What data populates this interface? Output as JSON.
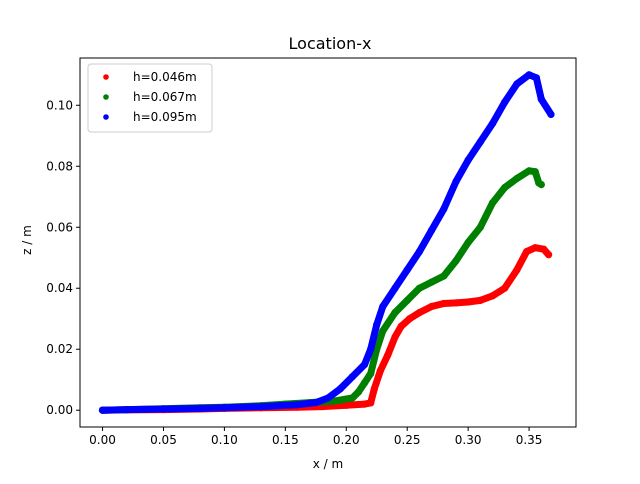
{
  "chart_data": {
    "type": "scatter",
    "title": "Location-x",
    "xlabel": "x / m",
    "ylabel": "z / m",
    "xlim": [
      -0.0185,
      0.3885
    ],
    "ylim": [
      -0.0055,
      0.1155
    ],
    "xticks": [
      0.0,
      0.05,
      0.1,
      0.15,
      0.2,
      0.25,
      0.3,
      0.35
    ],
    "xtick_labels": [
      "0.00",
      "0.05",
      "0.10",
      "0.15",
      "0.20",
      "0.25",
      "0.30",
      "0.35"
    ],
    "yticks": [
      0.0,
      0.02,
      0.04,
      0.06,
      0.08,
      0.1
    ],
    "ytick_labels": [
      "0.00",
      "0.02",
      "0.04",
      "0.06",
      "0.08",
      "0.10"
    ],
    "grid": false,
    "legend_position": "top-left",
    "series": [
      {
        "name": "h=0.046m",
        "color": "#ff0000",
        "points": [
          [
            0.0,
            0.0
          ],
          [
            0.02,
            0.0001
          ],
          [
            0.05,
            0.0002
          ],
          [
            0.08,
            0.0004
          ],
          [
            0.1,
            0.0006
          ],
          [
            0.13,
            0.0008
          ],
          [
            0.16,
            0.001
          ],
          [
            0.18,
            0.0012
          ],
          [
            0.2,
            0.0016
          ],
          [
            0.215,
            0.002
          ],
          [
            0.22,
            0.0024
          ],
          [
            0.223,
            0.007
          ],
          [
            0.228,
            0.013
          ],
          [
            0.234,
            0.018
          ],
          [
            0.24,
            0.024
          ],
          [
            0.245,
            0.0275
          ],
          [
            0.252,
            0.03
          ],
          [
            0.26,
            0.032
          ],
          [
            0.27,
            0.034
          ],
          [
            0.28,
            0.035
          ],
          [
            0.29,
            0.0352
          ],
          [
            0.3,
            0.0355
          ],
          [
            0.31,
            0.036
          ],
          [
            0.32,
            0.0375
          ],
          [
            0.33,
            0.04
          ],
          [
            0.34,
            0.046
          ],
          [
            0.348,
            0.052
          ],
          [
            0.355,
            0.0533
          ],
          [
            0.362,
            0.0528
          ],
          [
            0.366,
            0.051
          ]
        ]
      },
      {
        "name": "h=0.067m",
        "color": "#008000",
        "points": [
          [
            0.0,
            0.0
          ],
          [
            0.02,
            0.0002
          ],
          [
            0.05,
            0.0005
          ],
          [
            0.08,
            0.0008
          ],
          [
            0.1,
            0.001
          ],
          [
            0.13,
            0.0015
          ],
          [
            0.15,
            0.002
          ],
          [
            0.17,
            0.0025
          ],
          [
            0.19,
            0.003
          ],
          [
            0.205,
            0.004
          ],
          [
            0.21,
            0.006
          ],
          [
            0.215,
            0.009
          ],
          [
            0.22,
            0.012
          ],
          [
            0.225,
            0.02
          ],
          [
            0.23,
            0.026
          ],
          [
            0.24,
            0.032
          ],
          [
            0.25,
            0.036
          ],
          [
            0.26,
            0.04
          ],
          [
            0.27,
            0.042
          ],
          [
            0.28,
            0.044
          ],
          [
            0.29,
            0.049
          ],
          [
            0.3,
            0.055
          ],
          [
            0.31,
            0.06
          ],
          [
            0.32,
            0.068
          ],
          [
            0.33,
            0.073
          ],
          [
            0.34,
            0.076
          ],
          [
            0.35,
            0.0785
          ],
          [
            0.355,
            0.0782
          ],
          [
            0.358,
            0.0745
          ],
          [
            0.36,
            0.074
          ]
        ]
      },
      {
        "name": "h=0.095m",
        "color": "#0000ff",
        "points": [
          [
            0.0,
            0.0
          ],
          [
            0.02,
            0.0002
          ],
          [
            0.05,
            0.0004
          ],
          [
            0.08,
            0.0006
          ],
          [
            0.1,
            0.0008
          ],
          [
            0.13,
            0.0012
          ],
          [
            0.16,
            0.0018
          ],
          [
            0.175,
            0.0025
          ],
          [
            0.185,
            0.004
          ],
          [
            0.195,
            0.007
          ],
          [
            0.205,
            0.011
          ],
          [
            0.215,
            0.015
          ],
          [
            0.22,
            0.02
          ],
          [
            0.225,
            0.028
          ],
          [
            0.23,
            0.034
          ],
          [
            0.24,
            0.04
          ],
          [
            0.25,
            0.046
          ],
          [
            0.26,
            0.052
          ],
          [
            0.27,
            0.059
          ],
          [
            0.28,
            0.066
          ],
          [
            0.29,
            0.075
          ],
          [
            0.3,
            0.082
          ],
          [
            0.31,
            0.088
          ],
          [
            0.32,
            0.094
          ],
          [
            0.33,
            0.101
          ],
          [
            0.34,
            0.107
          ],
          [
            0.35,
            0.11
          ],
          [
            0.356,
            0.109
          ],
          [
            0.36,
            0.102
          ],
          [
            0.368,
            0.097
          ]
        ]
      }
    ]
  }
}
